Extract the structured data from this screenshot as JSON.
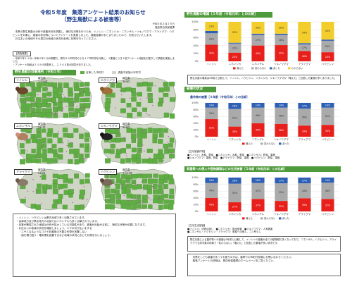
{
  "header": {
    "title": "令和５年度　集落アンケート結果のお知らせ",
    "subtitle": "（野生鳥獣による被害等）",
    "date": "令和６年２月２８日",
    "dept": "福島県自然保護課"
  },
  "intro": "　本県の野生鳥獣の分布や被害状況を把握し、適切な対策を行うため、イノシシ・ニホンジカ・ニホンザル・ツキノワグマ・アライグマ・ハクビシンを対象に、被害の状況等についてアンケートを実施しました。調査結果がまとまりましたので、お知らせいたします。\n　お住まいの地域やその周辺の地域の状況を参考に対策を行ってください。",
  "survey": {
    "head": "【調査概要】",
    "lines": [
      "・令和５年１１月～令和６年１月の期間で、県内５９市町村のうち４７市町村を対象に、１集落につき１枚アンケート用紙をお配りして調査を実施しました。",
      "・アンケート用紙は３,９９８枚配布し、２,５６８枚の回答がありました。"
    ]
  },
  "sections": {
    "distribution": "野生鳥獣の目撃場所（令和５年）",
    "increase": "野生鳥獣の増減［５年前（令和元年）との比較］",
    "damage": "被害の状況",
    "crop": "農作物の被害［５年前（令和元年）との比較］",
    "living": "家屋等への侵入や容物損壊などの生活被害［５年前（令和元年）との比較］"
  },
  "map_legend": {
    "seen": "目撃した市町村",
    "not": "調査不実施の市町村"
  },
  "colors": {
    "increase": "#e8201c",
    "same": "#aaaaaa",
    "decrease": "#2d5fb5",
    "unknown": "#f2cd2b",
    "map_green": "#5fae43",
    "map_purple": "#b04fb0",
    "map_gray": "#cfd6c6",
    "section": "#4f9a3a"
  },
  "animals": [
    {
      "name": "イノシシ",
      "count_label": "報告数",
      "count": "1,531件"
    },
    {
      "name": "ニホンジカ",
      "count_label": "報告数",
      "count": "364件"
    },
    {
      "name": "ニホンザル",
      "count_label": "報告数",
      "count": "541件"
    },
    {
      "name": "ツキノワグマ",
      "count_label": "報告数",
      "count": "466件"
    },
    {
      "name": "アライグマ",
      "count_label": "報告数",
      "count": "246件"
    },
    {
      "name": "ハクビシン",
      "count_label": "報告数",
      "count": "1,051件"
    }
  ],
  "notes": [
    "・イノシシ、ハクビシンは県内全域で多く目撃されています。",
    "・会津地方及び県北地方の北部ではニホンザルも多く目撃されています。",
    "・目撃が確認された地域は分布が拡大している可能性があり、被害が出始める前に、適切な対策が必要になります。",
    "・お住まいの地域の状況を確認しましょう。ヤブの刈り払いをする",
    "　・エサとなるようなゴミや収穫後の不要な作物を放置しない",
    "　・畑を柵で囲う・電気柵を設置するなど地域の状況に応じた対策を行いましょう。"
  ],
  "increase_chart_note": "野生鳥獣の増減は5年前と比較して、イノシシ、ハクビシン、ニホンジカ、ツキノワグマが「増えた」と回答した集落が多くありました。",
  "crop_note_head": "【主な被害作物】",
  "crop_notes": [
    "■イノシシ：水稲、野菜　■ニホンジカ：水稲、野菜　■ニホンザル：野菜、果樹",
    "■ツキノワグマ：果樹、野菜　■アライグマ：野菜、果樹　■ハクビシン：野菜、果樹"
  ],
  "living_note_head": "【主な生活被害】",
  "living_notes": [
    "■イノシシ：法面の崩し　■ニホンジカ：庭木被害　■ツキノワグマ：人身被害",
    "■ニホンザル・ハクビシン・アライグマ：家屋への侵入、ゴミ荒らし"
  ],
  "living_summary": "野生鳥獣による農作物への被害は5年前と比較して、イノシシの被害が全ての動物種で多くなっており、ニホンザル、ハクビシン、アライグマでも約半数の地域で「変わらない」「増えた」と回答した集落が多い状況です。",
  "footer": "　対策をしても被害があってお困りの方は、最寄りの市町村役場にお問い合わせください。\n　集落アンケートの詳細は、県自然保護課のホームページをご覧ください。",
  "chart_data": [
    {
      "type": "bar",
      "title": "野生鳥獣の増減［５年前（令和元年）との比較］",
      "categories": [
        "イノシシ",
        "ニホンジカ",
        "ニホンザル",
        "ツキノワグマ",
        "アライグマ",
        "ハクビシン"
      ],
      "series": [
        {
          "name": "増えた",
          "values": [
            42,
            22,
            40,
            41,
            26,
            23
          ]
        },
        {
          "name": "変わらない",
          "values": [
            29,
            23,
            27,
            26,
            17,
            29
          ]
        },
        {
          "name": "減った",
          "values": [
            6,
            2,
            3,
            3,
            3,
            3
          ]
        },
        {
          "name": "わからない",
          "values": [
            23,
            53,
            30,
            30,
            54,
            45
          ]
        }
      ],
      "ylim": [
        0,
        100
      ],
      "yticks": [
        "0%",
        "20%",
        "40%",
        "60%",
        "80%",
        "100%"
      ],
      "labels": [
        [
          "42%",
          "22%",
          "40%",
          "41%",
          "26%",
          "23%"
        ],
        [
          "29%",
          "23%",
          "27%",
          "26%",
          "17%",
          "29%"
        ],
        [
          "",
          "",
          "",
          "",
          "",
          ""
        ],
        [
          "23%",
          "53%",
          "30%",
          "30%",
          "54%",
          "45%"
        ]
      ]
    },
    {
      "type": "bar",
      "title": "農作物の被害［５年前（令和元年）との比較］",
      "categories": [
        "イノシシ",
        "ニホンジカ",
        "ニホンザル",
        "ツキノワグマ",
        "アライグマ",
        "ハクビシン"
      ],
      "series": [
        {
          "name": "増えた",
          "values": [
            52,
            30,
            40,
            38,
            33,
            35
          ]
        },
        {
          "name": "変わらない",
          "values": [
            34,
            52,
            46,
            48,
            50,
            51
          ]
        },
        {
          "name": "減った",
          "values": [
            14,
            18,
            14,
            14,
            17,
            14
          ]
        }
      ],
      "ylim": [
        0,
        100
      ],
      "yticks": [
        "0%",
        "20%",
        "40%",
        "60%",
        "80%",
        "100%"
      ],
      "labels": [
        [
          "52%",
          "30%",
          "40%",
          "38%",
          "33%",
          "35%"
        ],
        [
          "34%",
          "52%",
          "46%",
          "48%",
          "50%",
          "51%"
        ],
        [
          "14%",
          "18%",
          "14%",
          "14%",
          "17%",
          "14%"
        ]
      ]
    },
    {
      "type": "bar",
      "title": "家屋等への侵入や容物損壊などの生活被害［５年前（令和元年）との比較］",
      "categories": [
        "イノシシ",
        "ニホンジカ",
        "ニホンザル",
        "ツキノワグマ",
        "アライグマ",
        "ハクビシン"
      ],
      "series": [
        {
          "name": "増えた",
          "values": [
            40,
            27,
            37,
            31,
            39,
            37
          ]
        },
        {
          "name": "変わらない",
          "values": [
            44,
            55,
            47,
            52,
            44,
            48
          ]
        },
        {
          "name": "減った",
          "values": [
            16,
            18,
            16,
            17,
            17,
            15
          ]
        }
      ],
      "ylim": [
        0,
        100
      ],
      "yticks": [
        "0%",
        "20%",
        "40%",
        "60%",
        "80%",
        "100%"
      ],
      "labels": [
        [
          "40%",
          "27%",
          "37%",
          "31%",
          "39%",
          "37%"
        ],
        [
          "44%",
          "55%",
          "47%",
          "52%",
          "44%",
          "48%"
        ],
        [
          "16%",
          "18%",
          "16%",
          "17%",
          "17%",
          "15%"
        ]
      ]
    }
  ]
}
